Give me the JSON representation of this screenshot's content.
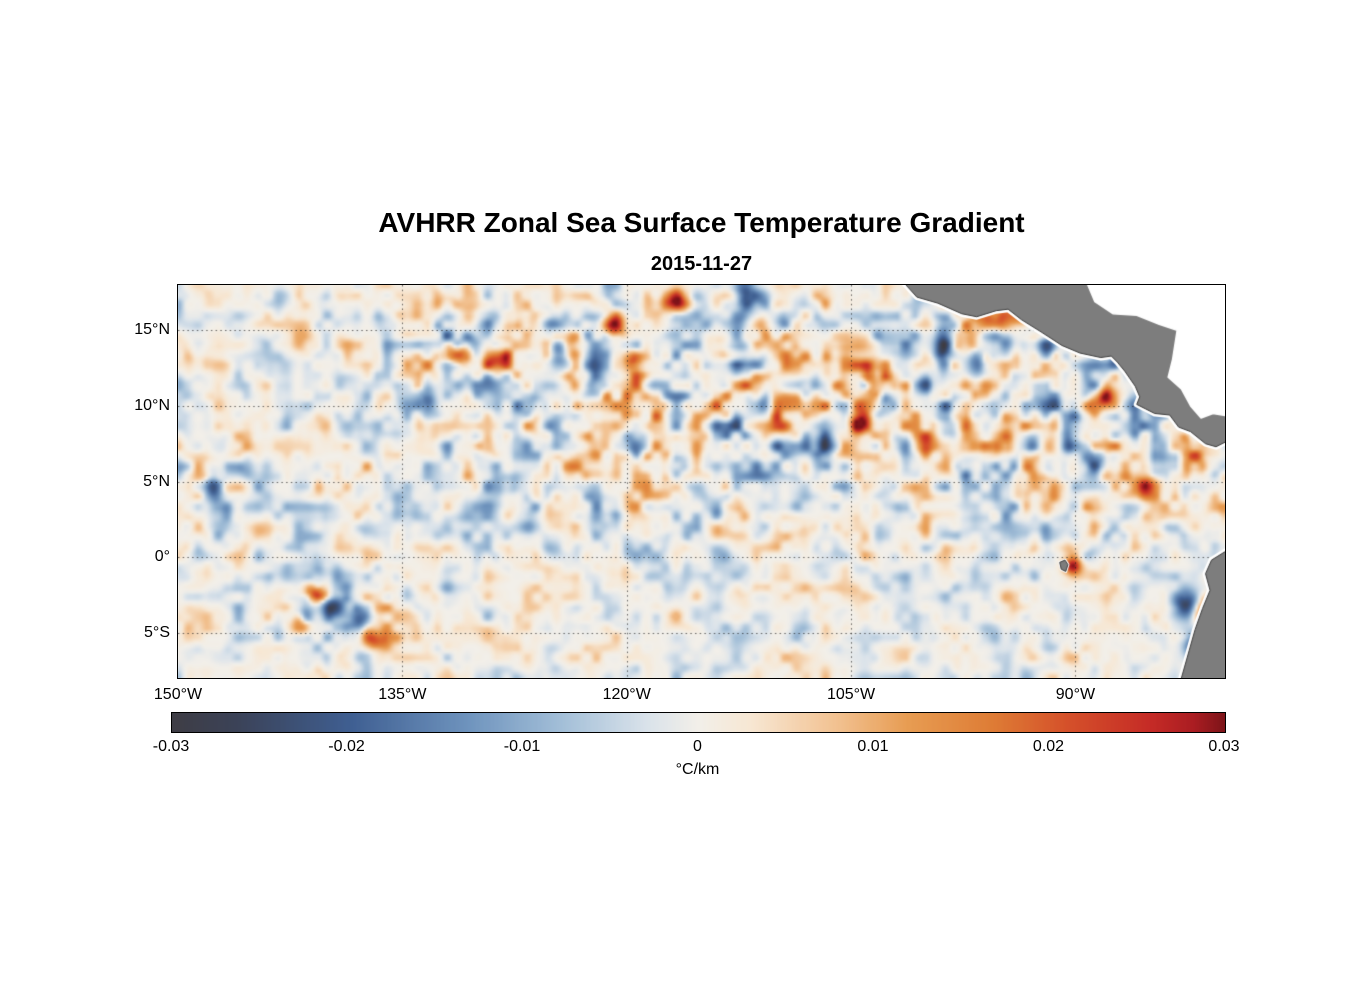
{
  "chart_data": {
    "type": "heatmap",
    "title": "AVHRR Zonal Sea Surface Temperature Gradient",
    "date": "2015-11-27",
    "extent": {
      "lon_min": -150,
      "lon_max": -80,
      "lat_min": -8,
      "lat_max": 18
    },
    "x_ticks": [
      {
        "value": -150,
        "label": "150°W"
      },
      {
        "value": -135,
        "label": "135°W"
      },
      {
        "value": -120,
        "label": "120°W"
      },
      {
        "value": -105,
        "label": "105°W"
      },
      {
        "value": -90,
        "label": "90°W"
      }
    ],
    "y_ticks": [
      {
        "value": 15,
        "label": "15°N"
      },
      {
        "value": 10,
        "label": "10°N"
      },
      {
        "value": 5,
        "label": "5°N"
      },
      {
        "value": 0,
        "label": "0°"
      },
      {
        "value": -5,
        "label": "5°S"
      }
    ],
    "grid": {
      "x_values": [
        -135,
        -120,
        -105,
        -90
      ],
      "y_values": [
        15,
        10,
        5,
        0,
        -5
      ],
      "style": "dotted",
      "color": "rgba(25,25,25,0.65)"
    },
    "colorbar": {
      "label": "°C/km",
      "min": -0.03,
      "max": 0.03,
      "tick_labels": [
        "-0.03",
        "-0.02",
        "-0.01",
        "0",
        "0.01",
        "0.02",
        "0.03"
      ],
      "tick_values": [
        -0.03,
        -0.02,
        -0.01,
        0,
        0.01,
        0.02,
        0.03
      ]
    },
    "colormap": [
      [
        0.0,
        "#3e3d45"
      ],
      [
        0.06,
        "#3b4257"
      ],
      [
        0.17,
        "#3f5f92"
      ],
      [
        0.28,
        "#6e93bd"
      ],
      [
        0.37,
        "#a3bfd8"
      ],
      [
        0.45,
        "#d9e2ea"
      ],
      [
        0.5,
        "#f2efe9"
      ],
      [
        0.55,
        "#f7e7d3"
      ],
      [
        0.63,
        "#f2c292"
      ],
      [
        0.7,
        "#e79c52"
      ],
      [
        0.78,
        "#de7c35"
      ],
      [
        0.85,
        "#d5512a"
      ],
      [
        0.93,
        "#c52b26"
      ],
      [
        0.97,
        "#ab1d22"
      ],
      [
        1.0,
        "#7e1419"
      ]
    ],
    "land_color": "#7d7d7d",
    "land_outline_color": "#3c3c3c",
    "coast_halo_color": "#ffffff",
    "field": {
      "seed1": 101,
      "seed2": 202,
      "grid_nx": 64,
      "grid_ny": 32,
      "freq1": 0.72,
      "freq2": 1.5,
      "w1": 0.62,
      "w2": 0.38,
      "sharpen": 1.35,
      "gain": 1.3,
      "activity": {
        "base": 0.3,
        "regions": [
          {
            "type": "ramp_band",
            "lat": 9.5,
            "lat_sigma": 7,
            "lon_edge": -131,
            "lon_scale": 6,
            "boost": 0.55
          },
          {
            "type": "gauss",
            "lon": -139.5,
            "lat": -3.5,
            "rx": 5.5,
            "ry": 2.6,
            "boost": 0.38
          },
          {
            "type": "gauss",
            "lon": -130.0,
            "lat": 13.5,
            "rx": 7.0,
            "ry": 3.2,
            "boost": 0.3
          },
          {
            "type": "gauss",
            "lon": -147.0,
            "lat": 4.5,
            "rx": 4.0,
            "ry": 3.0,
            "boost": 0.25
          }
        ]
      }
    },
    "features": [
      {
        "lon": -95.6,
        "lat": 15.8,
        "amp": 0.03,
        "rx": 1.1,
        "ry": 0.9
      },
      {
        "lon": -93.6,
        "lat": 16.0,
        "amp": 0.024,
        "rx": 0.8,
        "ry": 0.6
      },
      {
        "lon": -98.9,
        "lat": 13.6,
        "amp": -0.027,
        "rx": 0.6,
        "ry": 1.5
      },
      {
        "lon": -91.9,
        "lat": 13.9,
        "amp": -0.026,
        "rx": 0.6,
        "ry": 1.1
      },
      {
        "lon": -96.3,
        "lat": 12.7,
        "amp": -0.018,
        "rx": 0.9,
        "ry": 0.8
      },
      {
        "lon": -87.8,
        "lat": 10.6,
        "amp": 0.022,
        "rx": 0.7,
        "ry": 0.6
      },
      {
        "lon": -88.7,
        "lat": 6.6,
        "amp": -0.018,
        "rx": 0.8,
        "ry": 0.7
      },
      {
        "lon": -104.4,
        "lat": 8.9,
        "amp": 0.022,
        "rx": 0.7,
        "ry": 0.7
      },
      {
        "lon": -106.8,
        "lat": 7.4,
        "amp": -0.02,
        "rx": 0.7,
        "ry": 0.9
      },
      {
        "lon": -103.8,
        "lat": 11.6,
        "amp": 0.02,
        "rx": 0.6,
        "ry": 1.0
      },
      {
        "lon": -112.1,
        "lat": 17.4,
        "amp": -0.023,
        "rx": 0.7,
        "ry": 1.1
      },
      {
        "lon": -116.6,
        "lat": 16.9,
        "amp": 0.021,
        "rx": 0.8,
        "ry": 0.7
      },
      {
        "lon": -120.8,
        "lat": 15.3,
        "amp": 0.026,
        "rx": 0.7,
        "ry": 0.8
      },
      {
        "lon": -119.6,
        "lat": 12.9,
        "amp": 0.02,
        "rx": 0.7,
        "ry": 0.7
      },
      {
        "lon": -124.5,
        "lat": 13.6,
        "amp": -0.02,
        "rx": 0.6,
        "ry": 1.0
      },
      {
        "lon": -131.4,
        "lat": 13.5,
        "amp": 0.024,
        "rx": 0.8,
        "ry": 0.8
      },
      {
        "lon": -128.7,
        "lat": 13.0,
        "amp": 0.02,
        "rx": 0.7,
        "ry": 0.7
      },
      {
        "lon": -133.3,
        "lat": 10.5,
        "amp": -0.019,
        "rx": 0.55,
        "ry": 1.2
      },
      {
        "lon": -147.6,
        "lat": 4.6,
        "amp": -0.023,
        "rx": 0.6,
        "ry": 0.9
      },
      {
        "lon": -139.6,
        "lat": -3.3,
        "amp": -0.026,
        "rx": 0.8,
        "ry": 0.8
      },
      {
        "lon": -137.9,
        "lat": -4.1,
        "amp": -0.02,
        "rx": 0.6,
        "ry": 0.7
      },
      {
        "lon": -140.8,
        "lat": -2.4,
        "amp": 0.021,
        "rx": 0.7,
        "ry": 0.6
      },
      {
        "lon": -141.9,
        "lat": -4.6,
        "amp": 0.018,
        "rx": 0.6,
        "ry": 0.6
      },
      {
        "lon": -136.8,
        "lat": -5.5,
        "amp": 0.017,
        "rx": 0.7,
        "ry": 0.6
      },
      {
        "lon": -90.2,
        "lat": -0.6,
        "amp": 0.022,
        "rx": 0.6,
        "ry": 0.5
      },
      {
        "lon": -81.2,
        "lat": -3.6,
        "amp": 0.03,
        "rx": 0.7,
        "ry": 0.8
      },
      {
        "lon": -82.6,
        "lat": -3.1,
        "amp": -0.028,
        "rx": 0.9,
        "ry": 1.0
      },
      {
        "lon": -81.9,
        "lat": -5.8,
        "amp": -0.024,
        "rx": 0.8,
        "ry": 0.9
      },
      {
        "lon": -85.2,
        "lat": 4.8,
        "amp": 0.018,
        "rx": 0.8,
        "ry": 0.7
      }
    ],
    "land_polygons": {
      "central_america": [
        [
          -101.6,
          18.3
        ],
        [
          -100.6,
          17.2
        ],
        [
          -99.2,
          16.8
        ],
        [
          -97.6,
          16.1
        ],
        [
          -96.6,
          15.9
        ],
        [
          -95.3,
          16.3
        ],
        [
          -94.5,
          16.4
        ],
        [
          -93.6,
          15.7
        ],
        [
          -92.3,
          14.9
        ],
        [
          -90.9,
          14.0
        ],
        [
          -89.7,
          13.5
        ],
        [
          -88.3,
          13.2
        ],
        [
          -87.6,
          13.3
        ],
        [
          -87.2,
          12.9
        ],
        [
          -86.7,
          12.3
        ],
        [
          -86.0,
          11.3
        ],
        [
          -85.7,
          10.6
        ],
        [
          -85.9,
          10.1
        ],
        [
          -85.3,
          9.8
        ],
        [
          -84.7,
          9.5
        ],
        [
          -83.7,
          9.4
        ],
        [
          -83.1,
          8.6
        ],
        [
          -82.3,
          8.3
        ],
        [
          -81.3,
          7.5
        ],
        [
          -80.6,
          7.3
        ],
        [
          -79.6,
          7.8
        ],
        [
          -79.6,
          18.3
        ]
      ],
      "south_america": [
        [
          -79.6,
          0.6
        ],
        [
          -80.9,
          -0.2
        ],
        [
          -81.3,
          -1.1
        ],
        [
          -81.0,
          -2.2
        ],
        [
          -81.5,
          -3.4
        ],
        [
          -82.0,
          -4.8
        ],
        [
          -82.4,
          -6.2
        ],
        [
          -83.0,
          -8.3
        ],
        [
          -79.6,
          -8.3
        ]
      ],
      "galapagos": [
        [
          -91.05,
          -0.35
        ],
        [
          -90.7,
          -0.2
        ],
        [
          -90.5,
          -0.5
        ],
        [
          -90.65,
          -0.95
        ],
        [
          -90.95,
          -0.8
        ]
      ]
    },
    "no_data_polygons": {
      "caribbean": [
        [
          -89.3,
          18.3
        ],
        [
          -88.7,
          16.9
        ],
        [
          -87.5,
          16.1
        ],
        [
          -85.9,
          16.0
        ],
        [
          -84.4,
          15.4
        ],
        [
          -83.2,
          15.0
        ],
        [
          -83.5,
          13.1
        ],
        [
          -83.8,
          11.9
        ],
        [
          -82.9,
          11.1
        ],
        [
          -82.3,
          10.0
        ],
        [
          -81.6,
          9.2
        ],
        [
          -80.8,
          9.5
        ],
        [
          -79.6,
          9.3
        ],
        [
          -79.6,
          18.3
        ]
      ]
    }
  }
}
